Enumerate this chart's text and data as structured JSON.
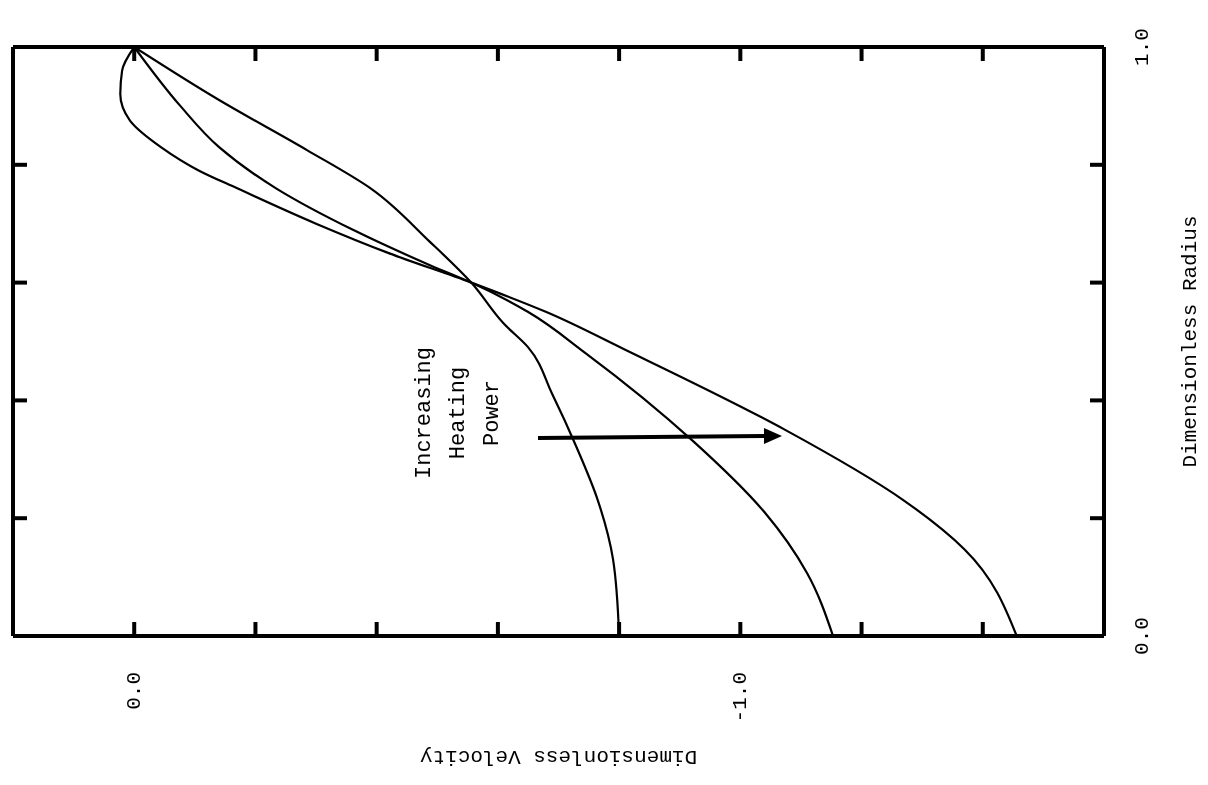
{
  "chart_data": {
    "type": "line",
    "xlabel": "Dimensionless Velocity",
    "ylabel": "Dimensionless Radius",
    "xlim": [
      0.2,
      -1.6
    ],
    "xticks": [
      {
        "value": 0.0,
        "label": "0.0"
      },
      {
        "value": -0.2,
        "label": null
      },
      {
        "value": -0.4,
        "label": null
      },
      {
        "value": -0.6,
        "label": null
      },
      {
        "value": -0.8,
        "label": null
      },
      {
        "value": -1.0,
        "label": "-1.0"
      },
      {
        "value": -1.2,
        "label": null
      },
      {
        "value": -1.4,
        "label": null
      }
    ],
    "ylim": [
      0,
      1
    ],
    "yticks": [
      {
        "value": 0.0,
        "label": "0.0"
      },
      {
        "value": 0.2,
        "label": null
      },
      {
        "value": 0.4,
        "label": null
      },
      {
        "value": 0.6,
        "label": null
      },
      {
        "value": 0.8,
        "label": null
      },
      {
        "value": 1.0,
        "label": "1.0"
      }
    ],
    "series": [
      {
        "color": "#000000",
        "x": [
          0,
          -0.14,
          -0.285,
          -0.39,
          -0.487,
          -0.556,
          -0.61,
          -0.65,
          -0.69,
          -0.73,
          -0.765,
          -0.79,
          -0.8
        ],
        "values": [
          1,
          0.91,
          0.825,
          0.76,
          0.67,
          0.6,
          0.53,
          0.49,
          0.41,
          0.32,
          0.23,
          0.13,
          0
        ]
      },
      {
        "color": "#000000",
        "x": [
          0,
          -0.076,
          -0.14,
          -0.234,
          -0.36,
          -0.487,
          -0.556,
          -0.65,
          -0.745,
          -0.923,
          -1.04,
          -1.11,
          -1.153
        ],
        "values": [
          1,
          0.9,
          0.83,
          0.76,
          0.69,
          0.63,
          0.6,
          0.55,
          0.48,
          0.33,
          0.21,
          0.107,
          0
        ]
      },
      {
        "color": "#000000",
        "x": [
          0,
          0.02,
          0.023,
          0.007,
          -0.044,
          -0.107,
          -0.17,
          -0.3,
          -0.42,
          -0.556,
          -0.68,
          -0.81,
          -1.074,
          -1.27,
          -1.37,
          -1.456
        ],
        "values": [
          1,
          0.96,
          0.92,
          0.875,
          0.83,
          0.79,
          0.76,
          0.7,
          0.65,
          0.6,
          0.55,
          0.486,
          0.35,
          0.23,
          0.147,
          0
        ]
      }
    ],
    "annotations": [
      "Increasing Heating Power"
    ],
    "marker": "none",
    "line_style": "solid"
  }
}
